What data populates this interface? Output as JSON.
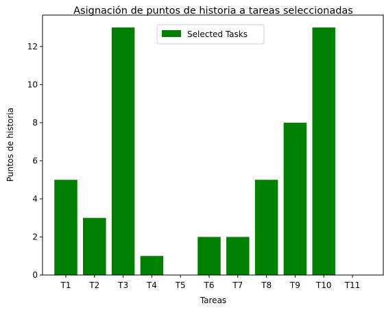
{
  "chart_data": {
    "type": "bar",
    "title": "Asignación de puntos de historia a tareas seleccionadas",
    "xlabel": "Tareas",
    "ylabel": "Puntos de historia",
    "categories": [
      "T1",
      "T2",
      "T3",
      "T4",
      "T5",
      "T6",
      "T7",
      "T8",
      "T9",
      "T10",
      "T11"
    ],
    "series": [
      {
        "name": "Selected Tasks",
        "values": [
          5,
          3,
          13,
          1,
          0,
          2,
          2,
          5,
          8,
          13,
          0
        ],
        "color": "#008000"
      }
    ],
    "ylim": [
      0,
      13.65
    ],
    "yticks": [
      0,
      2,
      4,
      6,
      8,
      10,
      12
    ],
    "grid": false,
    "legend": "upper-center"
  }
}
